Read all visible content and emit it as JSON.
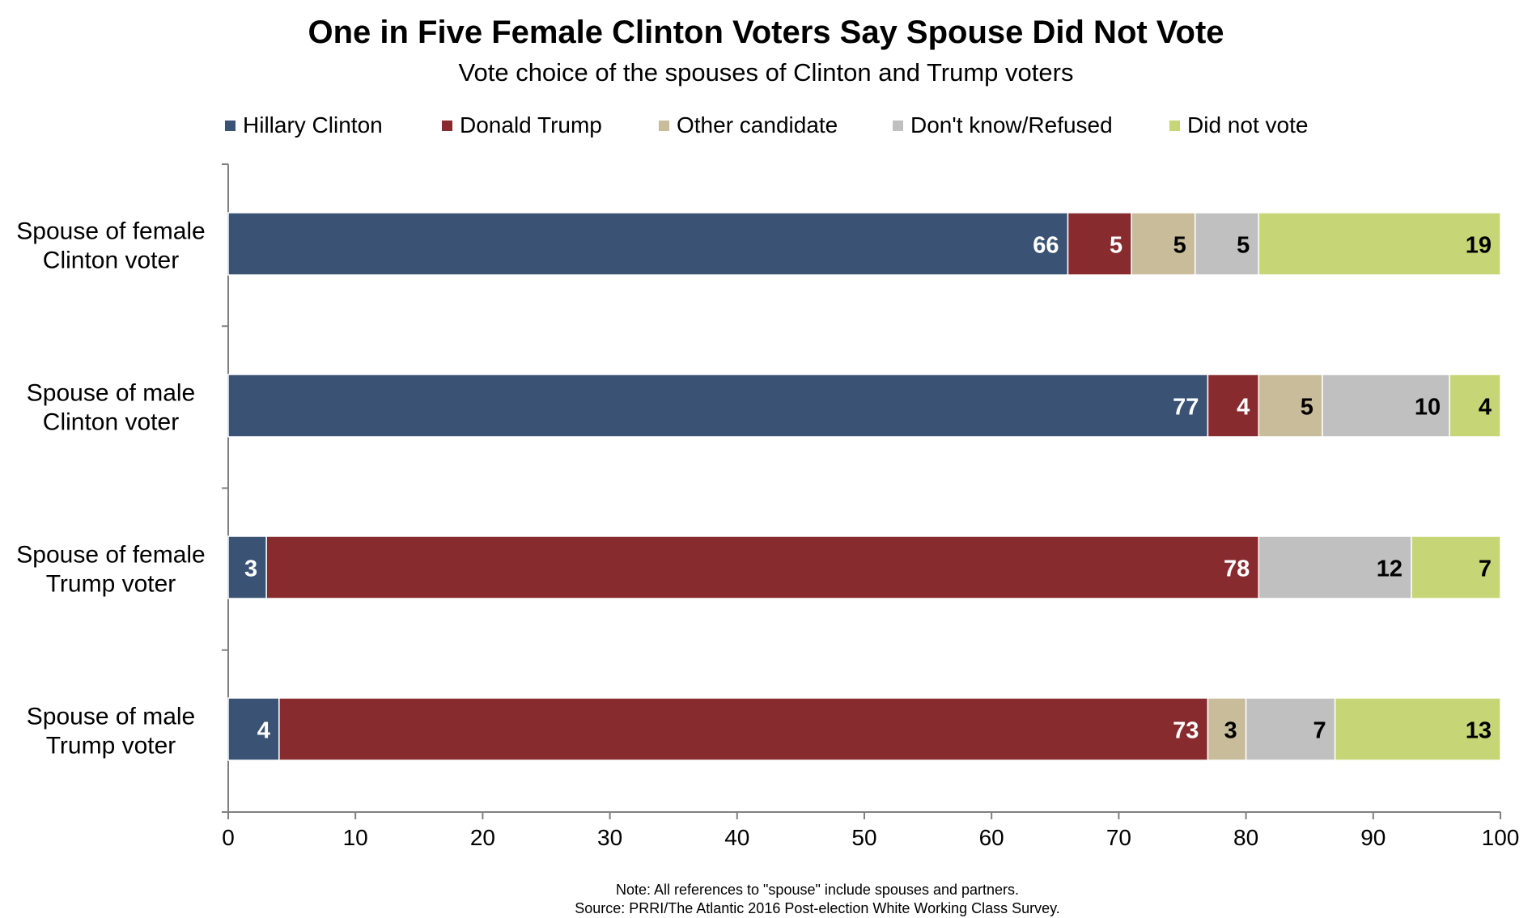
{
  "chart_data": {
    "type": "bar",
    "orientation": "horizontal",
    "stacked": true,
    "title": "One in Five Female Clinton Voters Say Spouse Did Not Vote",
    "subtitle": "Vote choice of the spouses of Clinton and Trump voters",
    "categories": [
      "Spouse of female Clinton voter",
      "Spouse of male Clinton voter",
      "Spouse of female Trump voter",
      "Spouse of male Trump voter"
    ],
    "category_lines": [
      [
        "Spouse of female",
        "Clinton voter"
      ],
      [
        "Spouse of male",
        "Clinton voter"
      ],
      [
        "Spouse of female",
        "Trump voter"
      ],
      [
        "Spouse of male",
        "Trump voter"
      ]
    ],
    "series": [
      {
        "name": "Hillary Clinton",
        "color": "#3a5274",
        "label_color": "#ffffff",
        "values": [
          66,
          77,
          3,
          4
        ]
      },
      {
        "name": "Donald Trump",
        "color": "#872b2e",
        "label_color": "#ffffff",
        "values": [
          5,
          4,
          78,
          73
        ]
      },
      {
        "name": "Other candidate",
        "color": "#c8bc9a",
        "label_color": "#000000",
        "values": [
          5,
          5,
          0,
          3
        ]
      },
      {
        "name": "Don't know/Refused",
        "color": "#c0c0c0",
        "label_color": "#000000",
        "values": [
          5,
          10,
          12,
          7
        ]
      },
      {
        "name": "Did not vote",
        "color": "#c6d575",
        "label_color": "#000000",
        "values": [
          19,
          4,
          7,
          13
        ]
      }
    ],
    "x_ticks": [
      0,
      10,
      20,
      30,
      40,
      50,
      60,
      70,
      80,
      90,
      100
    ],
    "xlim": [
      0,
      100
    ],
    "grid": false,
    "legend_position": "top"
  },
  "notes": {
    "note": "Note: All references to \"spouse\" include spouses and partners.",
    "source": "Source: PRRI/The Atlantic 2016 Post-election White Working Class Survey."
  }
}
